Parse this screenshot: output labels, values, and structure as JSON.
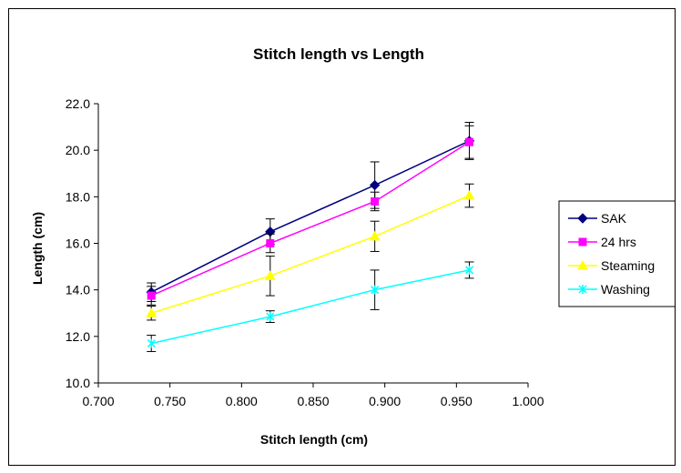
{
  "chart_data": {
    "type": "line",
    "title": "Stitch length vs Length",
    "xlabel": "Stitch length (cm)",
    "ylabel": "Length (cm)",
    "xlim": [
      0.7,
      1.0
    ],
    "ylim": [
      10.0,
      22.0
    ],
    "x_ticks": [
      "0.700",
      "0.750",
      "0.800",
      "0.850",
      "0.900",
      "0.950",
      "1.000"
    ],
    "y_ticks": [
      "10.0",
      "12.0",
      "14.0",
      "16.0",
      "18.0",
      "20.0",
      "22.0"
    ],
    "x": [
      0.737,
      0.82,
      0.893,
      0.959
    ],
    "grid": false,
    "legend_position": "right",
    "series": [
      {
        "name": "SAK",
        "color": "#000080",
        "marker": "diamond",
        "values": [
          13.9,
          16.5,
          18.5,
          20.4
        ],
        "error": [
          0.4,
          0.55,
          1.0,
          0.8
        ]
      },
      {
        "name": "24 hrs",
        "color": "#ff00ff",
        "marker": "square",
        "values": [
          13.75,
          16.0,
          17.8,
          20.35
        ],
        "error": [
          0.4,
          0.4,
          0.4,
          0.7
        ]
      },
      {
        "name": "Steaming",
        "color": "#ffff00",
        "marker": "triangle",
        "values": [
          13.0,
          14.6,
          16.3,
          18.05
        ],
        "error": [
          0.3,
          0.85,
          0.65,
          0.5
        ]
      },
      {
        "name": "Washing",
        "color": "#00ffff",
        "marker": "cross",
        "values": [
          11.7,
          12.85,
          14.0,
          14.85
        ],
        "error": [
          0.35,
          0.25,
          0.85,
          0.35
        ]
      }
    ]
  }
}
